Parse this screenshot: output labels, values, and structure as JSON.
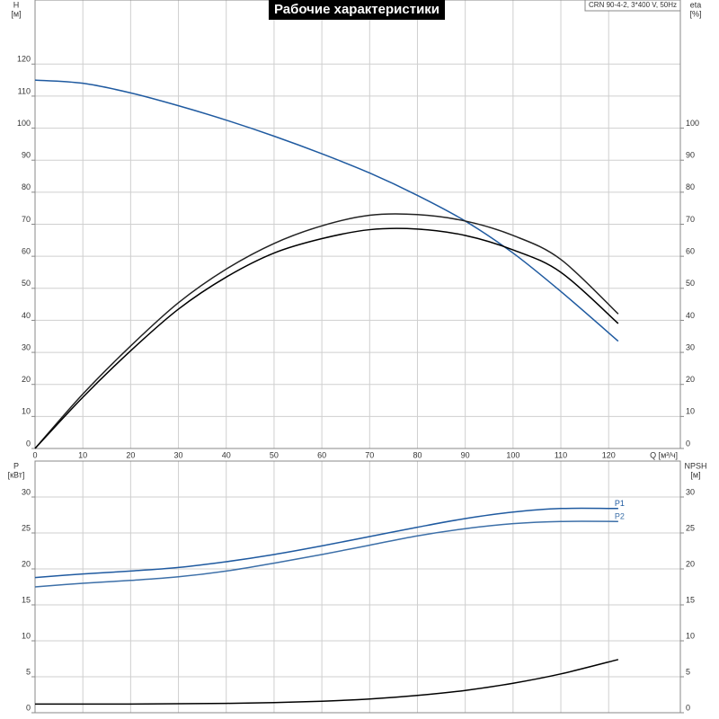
{
  "chart_data": [
    {
      "type": "line",
      "title": "Рабочие характеристики",
      "subtitle": "CRN 90-4-2, 3*400 V, 50Hz",
      "ylabel": "H",
      "yunit": "[м]",
      "y2label": "eta",
      "y2unit": "[%]",
      "xlabel": "Q [м³/ч]",
      "xlim": [
        0,
        135
      ],
      "xticks": [
        0,
        10,
        20,
        30,
        40,
        50,
        60,
        70,
        80,
        90,
        100,
        110,
        120
      ],
      "ylim": [
        0,
        140
      ],
      "yticks": [
        0,
        10,
        20,
        30,
        40,
        50,
        60,
        70,
        80,
        90,
        100,
        110,
        120
      ],
      "y2lim": [
        0,
        140
      ],
      "y2ticks": [
        0,
        10,
        20,
        30,
        40,
        50,
        60,
        70,
        80,
        90,
        100
      ],
      "grid": true,
      "x": [
        0,
        10,
        20,
        30,
        40,
        50,
        60,
        70,
        80,
        90,
        100,
        110,
        122
      ],
      "series": [
        {
          "color": "#1f5aa0",
          "values": [
            115,
            114,
            111,
            107,
            102.5,
            97.5,
            92,
            86,
            79,
            71,
            61,
            49,
            33.5
          ]
        },
        {
          "color": "#222222",
          "axis": "y2",
          "values": [
            0,
            17,
            32,
            45.5,
            56,
            64,
            69.5,
            72.8,
            73,
            71,
            66.5,
            59,
            42
          ]
        },
        {
          "color": "#000000",
          "axis": "y2",
          "values": [
            0,
            16,
            30.5,
            43.5,
            53.5,
            61,
            65.5,
            68.3,
            68.5,
            66.5,
            62,
            55,
            39
          ]
        }
      ]
    },
    {
      "type": "line",
      "ylabel": "P",
      "yunit": "[кВт]",
      "y2label": "NPSH",
      "y2unit": "[м]",
      "xlim": [
        0,
        135
      ],
      "xticks": [
        0,
        10,
        20,
        30,
        40,
        50,
        60,
        70,
        80,
        90,
        100,
        110,
        120
      ],
      "ylim": [
        0,
        35
      ],
      "yticks": [
        0,
        5,
        10,
        15,
        20,
        25,
        30
      ],
      "y2lim": [
        0,
        35
      ],
      "y2ticks": [
        0,
        5,
        10,
        15,
        20,
        25,
        30
      ],
      "grid": true,
      "x": [
        0,
        10,
        20,
        30,
        40,
        50,
        60,
        70,
        80,
        90,
        100,
        110,
        122
      ],
      "series": [
        {
          "name": "P1",
          "color": "#1f5aa0",
          "values": [
            18.8,
            19.3,
            19.7,
            20.2,
            21,
            22,
            23.2,
            24.5,
            25.8,
            27,
            27.9,
            28.4,
            28.4
          ]
        },
        {
          "name": "P2",
          "color": "#3c6fa8",
          "values": [
            17.5,
            18,
            18.4,
            18.9,
            19.7,
            20.8,
            22,
            23.3,
            24.6,
            25.6,
            26.3,
            26.6,
            26.6
          ]
        },
        {
          "color": "#000000",
          "axis": "y2",
          "values": [
            1.2,
            1.2,
            1.2,
            1.25,
            1.3,
            1.4,
            1.6,
            1.9,
            2.4,
            3.1,
            4.1,
            5.4,
            7.4
          ]
        }
      ]
    }
  ]
}
